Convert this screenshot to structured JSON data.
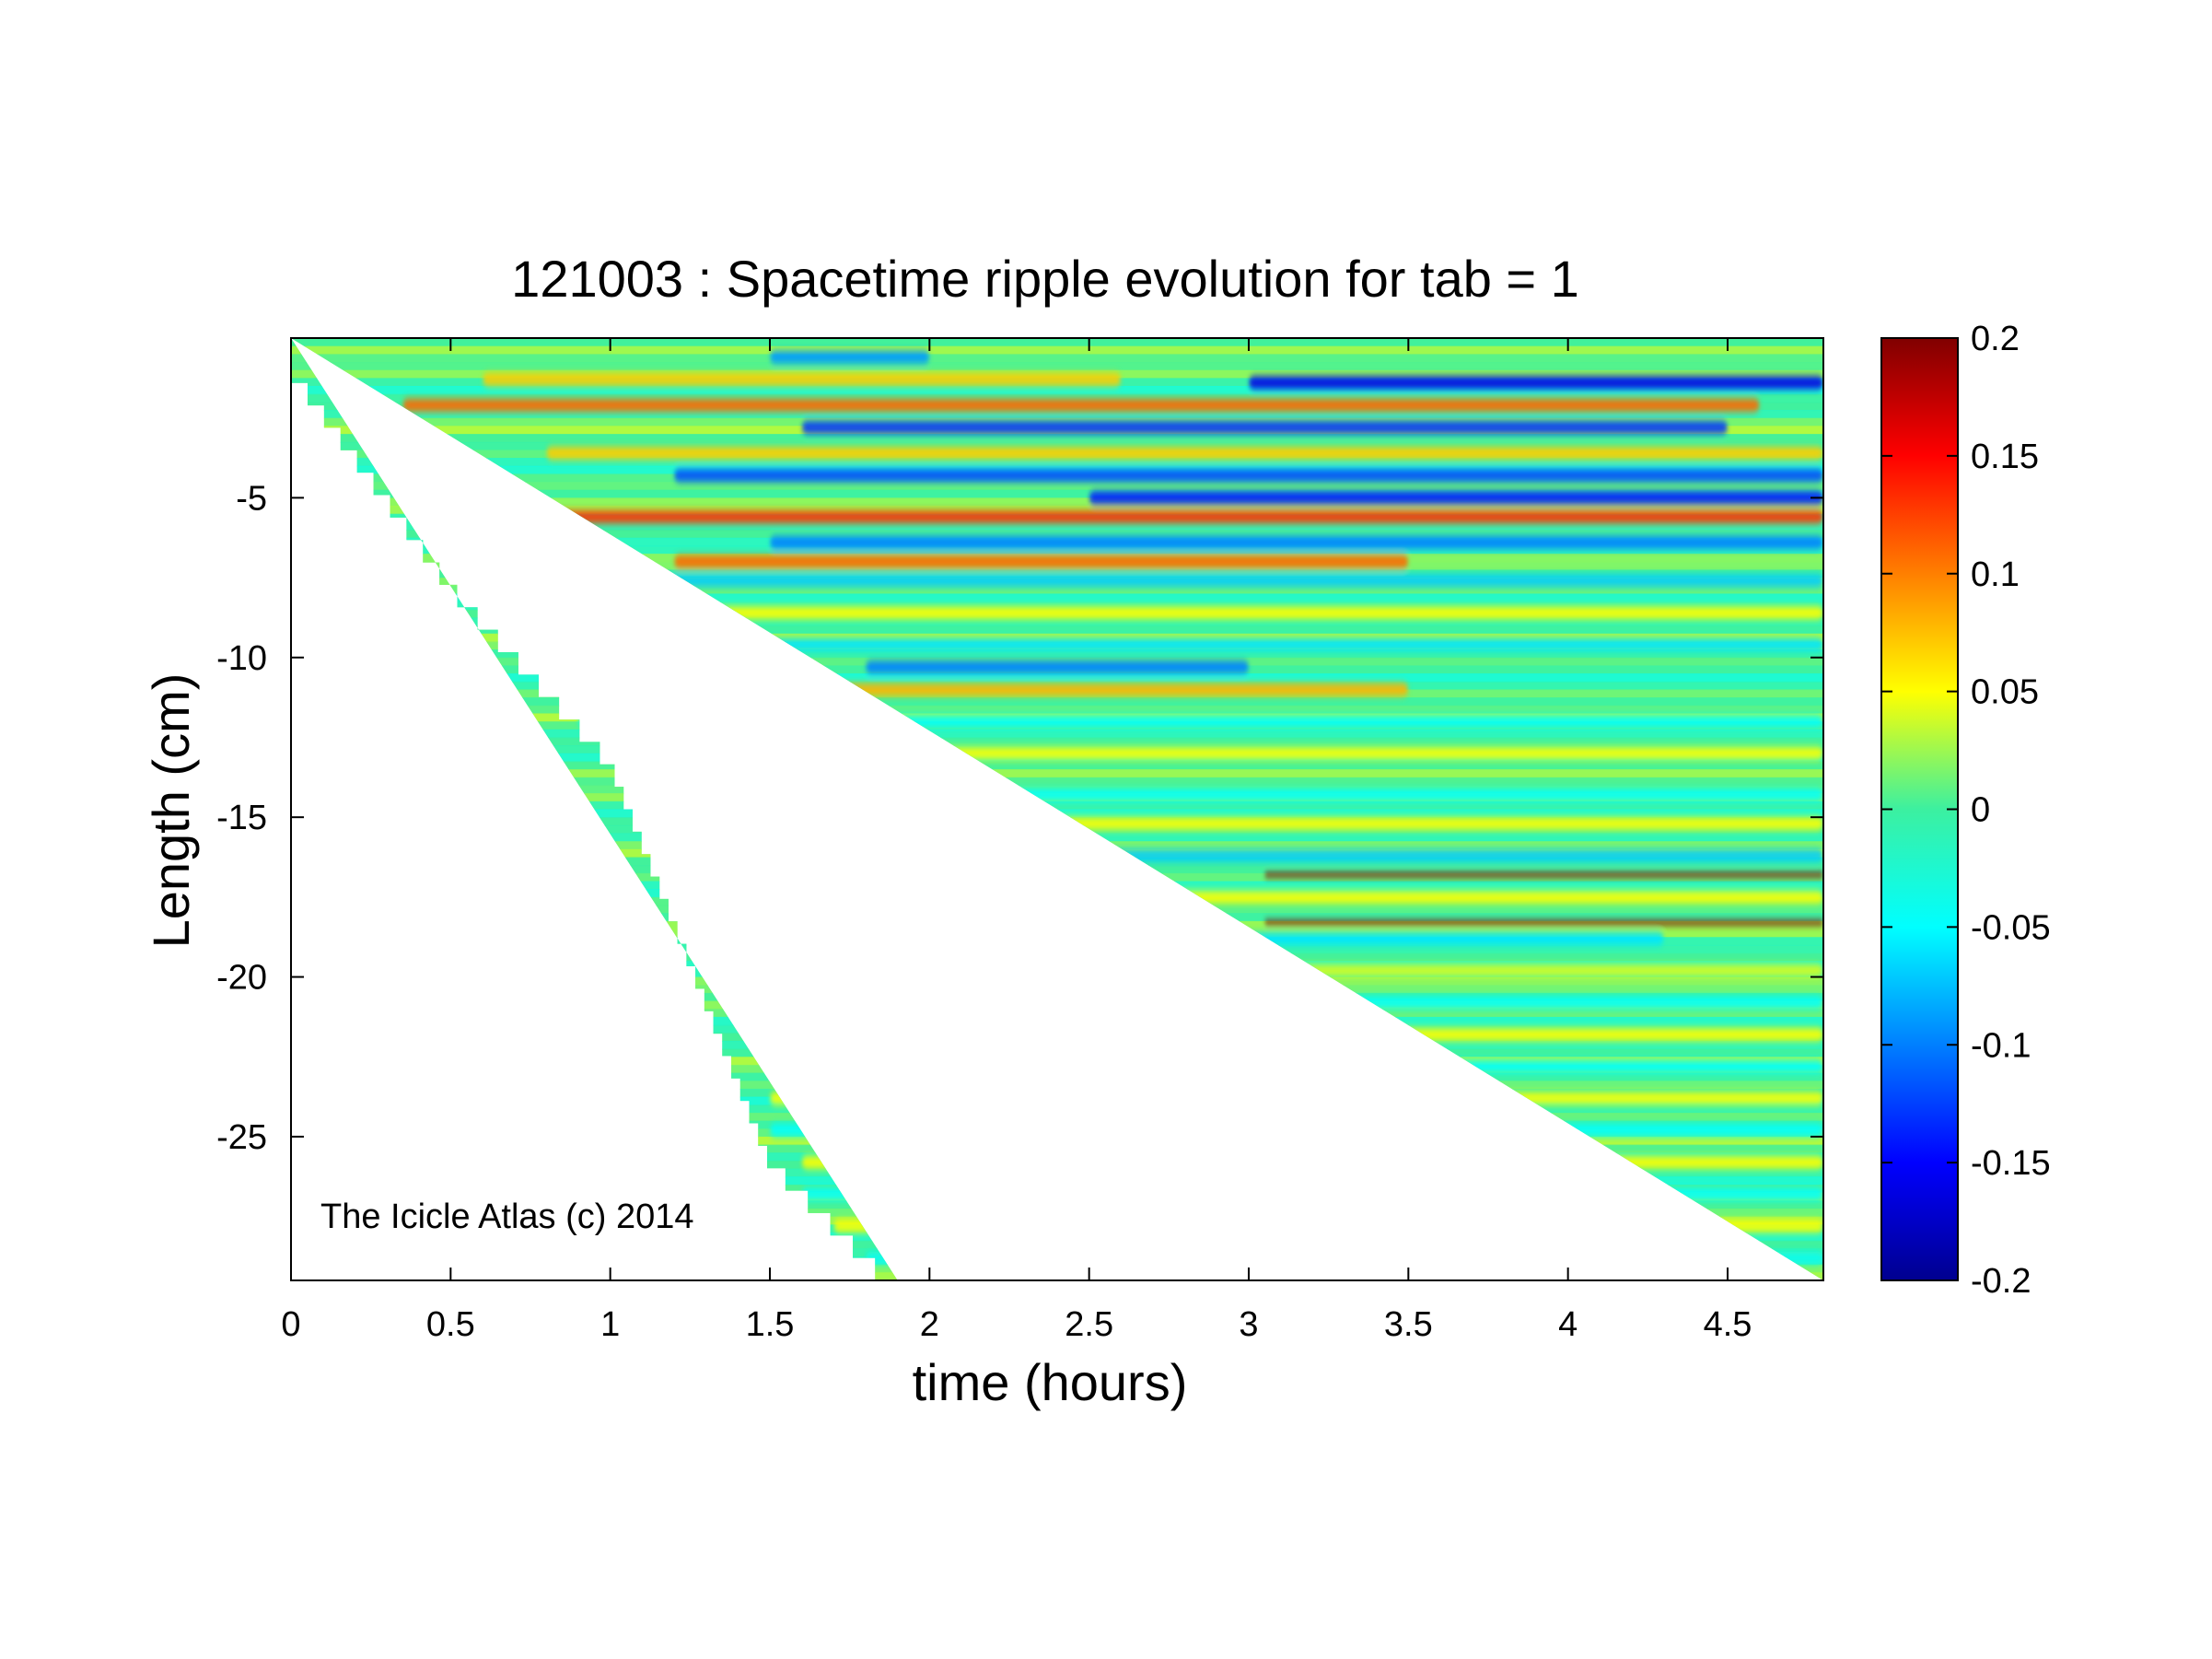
{
  "chart_data": {
    "type": "heatmap",
    "title": "121003 : Spacetime ripple evolution for tab = 1",
    "xlabel": "time (hours)",
    "ylabel": "Length (cm)",
    "xlim": [
      0,
      4.8
    ],
    "ylim": [
      -29.5,
      0
    ],
    "xticks": [
      0,
      0.5,
      1,
      1.5,
      2,
      2.5,
      3,
      3.5,
      4,
      4.5
    ],
    "xtick_labels": [
      "0",
      "0.5",
      "1",
      "1.5",
      "2",
      "2.5",
      "3",
      "3.5",
      "4",
      "4.5"
    ],
    "yticks": [
      -5,
      -10,
      -15,
      -20,
      -25
    ],
    "ytick_labels": [
      "-5",
      "-10",
      "-15",
      "-20",
      "-25"
    ],
    "colorbar": {
      "colormap": "jet",
      "clim": [
        -0.2,
        0.2
      ],
      "ticks": [
        0.2,
        0.15,
        0.1,
        0.05,
        0,
        -0.05,
        -0.1,
        -0.15,
        -0.2
      ],
      "tick_labels": [
        "0.2",
        "0.15",
        "0.1",
        "0.05",
        "0",
        "-0.05",
        "-0.1",
        "-0.15",
        "-0.2"
      ]
    },
    "data_region_edge": {
      "description_points_time_hours": [
        0,
        0.5,
        1,
        1.5,
        1.9
      ],
      "description_points_length_cm": [
        -0.7,
        -7.5,
        -13,
        -25.5,
        -29.5
      ]
    },
    "bands": [
      {
        "y": -0.6,
        "x_start": 1.5,
        "x_end": 2.0,
        "value": -0.09
      },
      {
        "y": -1.3,
        "x_start": 0.6,
        "x_end": 2.6,
        "value": 0.07
      },
      {
        "y": -1.4,
        "x_start": 3.0,
        "x_end": 4.8,
        "value": -0.16
      },
      {
        "y": -2.1,
        "x_start": 0.35,
        "x_end": 4.6,
        "value": 0.11
      },
      {
        "y": -2.8,
        "x_start": 1.6,
        "x_end": 4.5,
        "value": -0.13
      },
      {
        "y": -3.6,
        "x_start": 0.8,
        "x_end": 4.8,
        "value": 0.07
      },
      {
        "y": -4.3,
        "x_start": 1.2,
        "x_end": 4.8,
        "value": -0.12
      },
      {
        "y": -5.0,
        "x_start": 2.5,
        "x_end": 4.8,
        "value": -0.14
      },
      {
        "y": -5.6,
        "x_start": 0.6,
        "x_end": 4.8,
        "value": 0.13
      },
      {
        "y": -6.4,
        "x_start": 1.5,
        "x_end": 4.8,
        "value": -0.1
      },
      {
        "y": -7.0,
        "x_start": 1.2,
        "x_end": 3.5,
        "value": 0.11
      },
      {
        "y": -7.6,
        "x_start": 1.0,
        "x_end": 4.8,
        "value": -0.07
      },
      {
        "y": -8.6,
        "x_start": 0.8,
        "x_end": 4.8,
        "value": 0.05
      },
      {
        "y": -9.6,
        "x_start": 0.8,
        "x_end": 4.8,
        "value": -0.06
      },
      {
        "y": -10.3,
        "x_start": 1.8,
        "x_end": 3.0,
        "value": -0.1
      },
      {
        "y": -11.0,
        "x_start": 1.2,
        "x_end": 3.5,
        "value": 0.08
      },
      {
        "y": -12.0,
        "x_start": 0.9,
        "x_end": 4.8,
        "value": -0.05
      },
      {
        "y": -13.0,
        "x_start": 1.0,
        "x_end": 4.8,
        "value": 0.05
      },
      {
        "y": -14.3,
        "x_start": 1.2,
        "x_end": 4.8,
        "value": -0.05
      },
      {
        "y": -15.2,
        "x_start": 1.2,
        "x_end": 4.8,
        "value": 0.05
      },
      {
        "y": -16.2,
        "x_start": 1.2,
        "x_end": 4.8,
        "value": -0.07
      },
      {
        "y": -16.8,
        "x_start": 3.05,
        "x_end": 4.8,
        "value": 0.2
      },
      {
        "y": -17.5,
        "x_start": 1.3,
        "x_end": 4.8,
        "value": 0.05
      },
      {
        "y": -18.3,
        "x_start": 3.05,
        "x_end": 4.8,
        "value": 0.2
      },
      {
        "y": -18.8,
        "x_start": 1.3,
        "x_end": 4.3,
        "value": -0.06
      },
      {
        "y": -19.8,
        "x_start": 1.4,
        "x_end": 4.8,
        "value": 0.04
      },
      {
        "y": -20.8,
        "x_start": 1.5,
        "x_end": 4.8,
        "value": -0.05
      },
      {
        "y": -21.8,
        "x_start": 1.5,
        "x_end": 4.8,
        "value": 0.05
      },
      {
        "y": -22.8,
        "x_start": 1.5,
        "x_end": 4.8,
        "value": -0.05
      },
      {
        "y": -23.8,
        "x_start": 1.5,
        "x_end": 4.8,
        "value": 0.05
      },
      {
        "y": -24.8,
        "x_start": 1.5,
        "x_end": 4.8,
        "value": -0.05
      },
      {
        "y": -25.8,
        "x_start": 1.6,
        "x_end": 4.8,
        "value": 0.05
      },
      {
        "y": -26.8,
        "x_start": 1.6,
        "x_end": 4.8,
        "value": -0.05
      },
      {
        "y": -27.8,
        "x_start": 1.7,
        "x_end": 4.8,
        "value": 0.05
      },
      {
        "y": -28.8,
        "x_start": 1.8,
        "x_end": 4.8,
        "value": -0.04
      }
    ]
  },
  "watermark": "The Icicle Atlas (c) 2014"
}
